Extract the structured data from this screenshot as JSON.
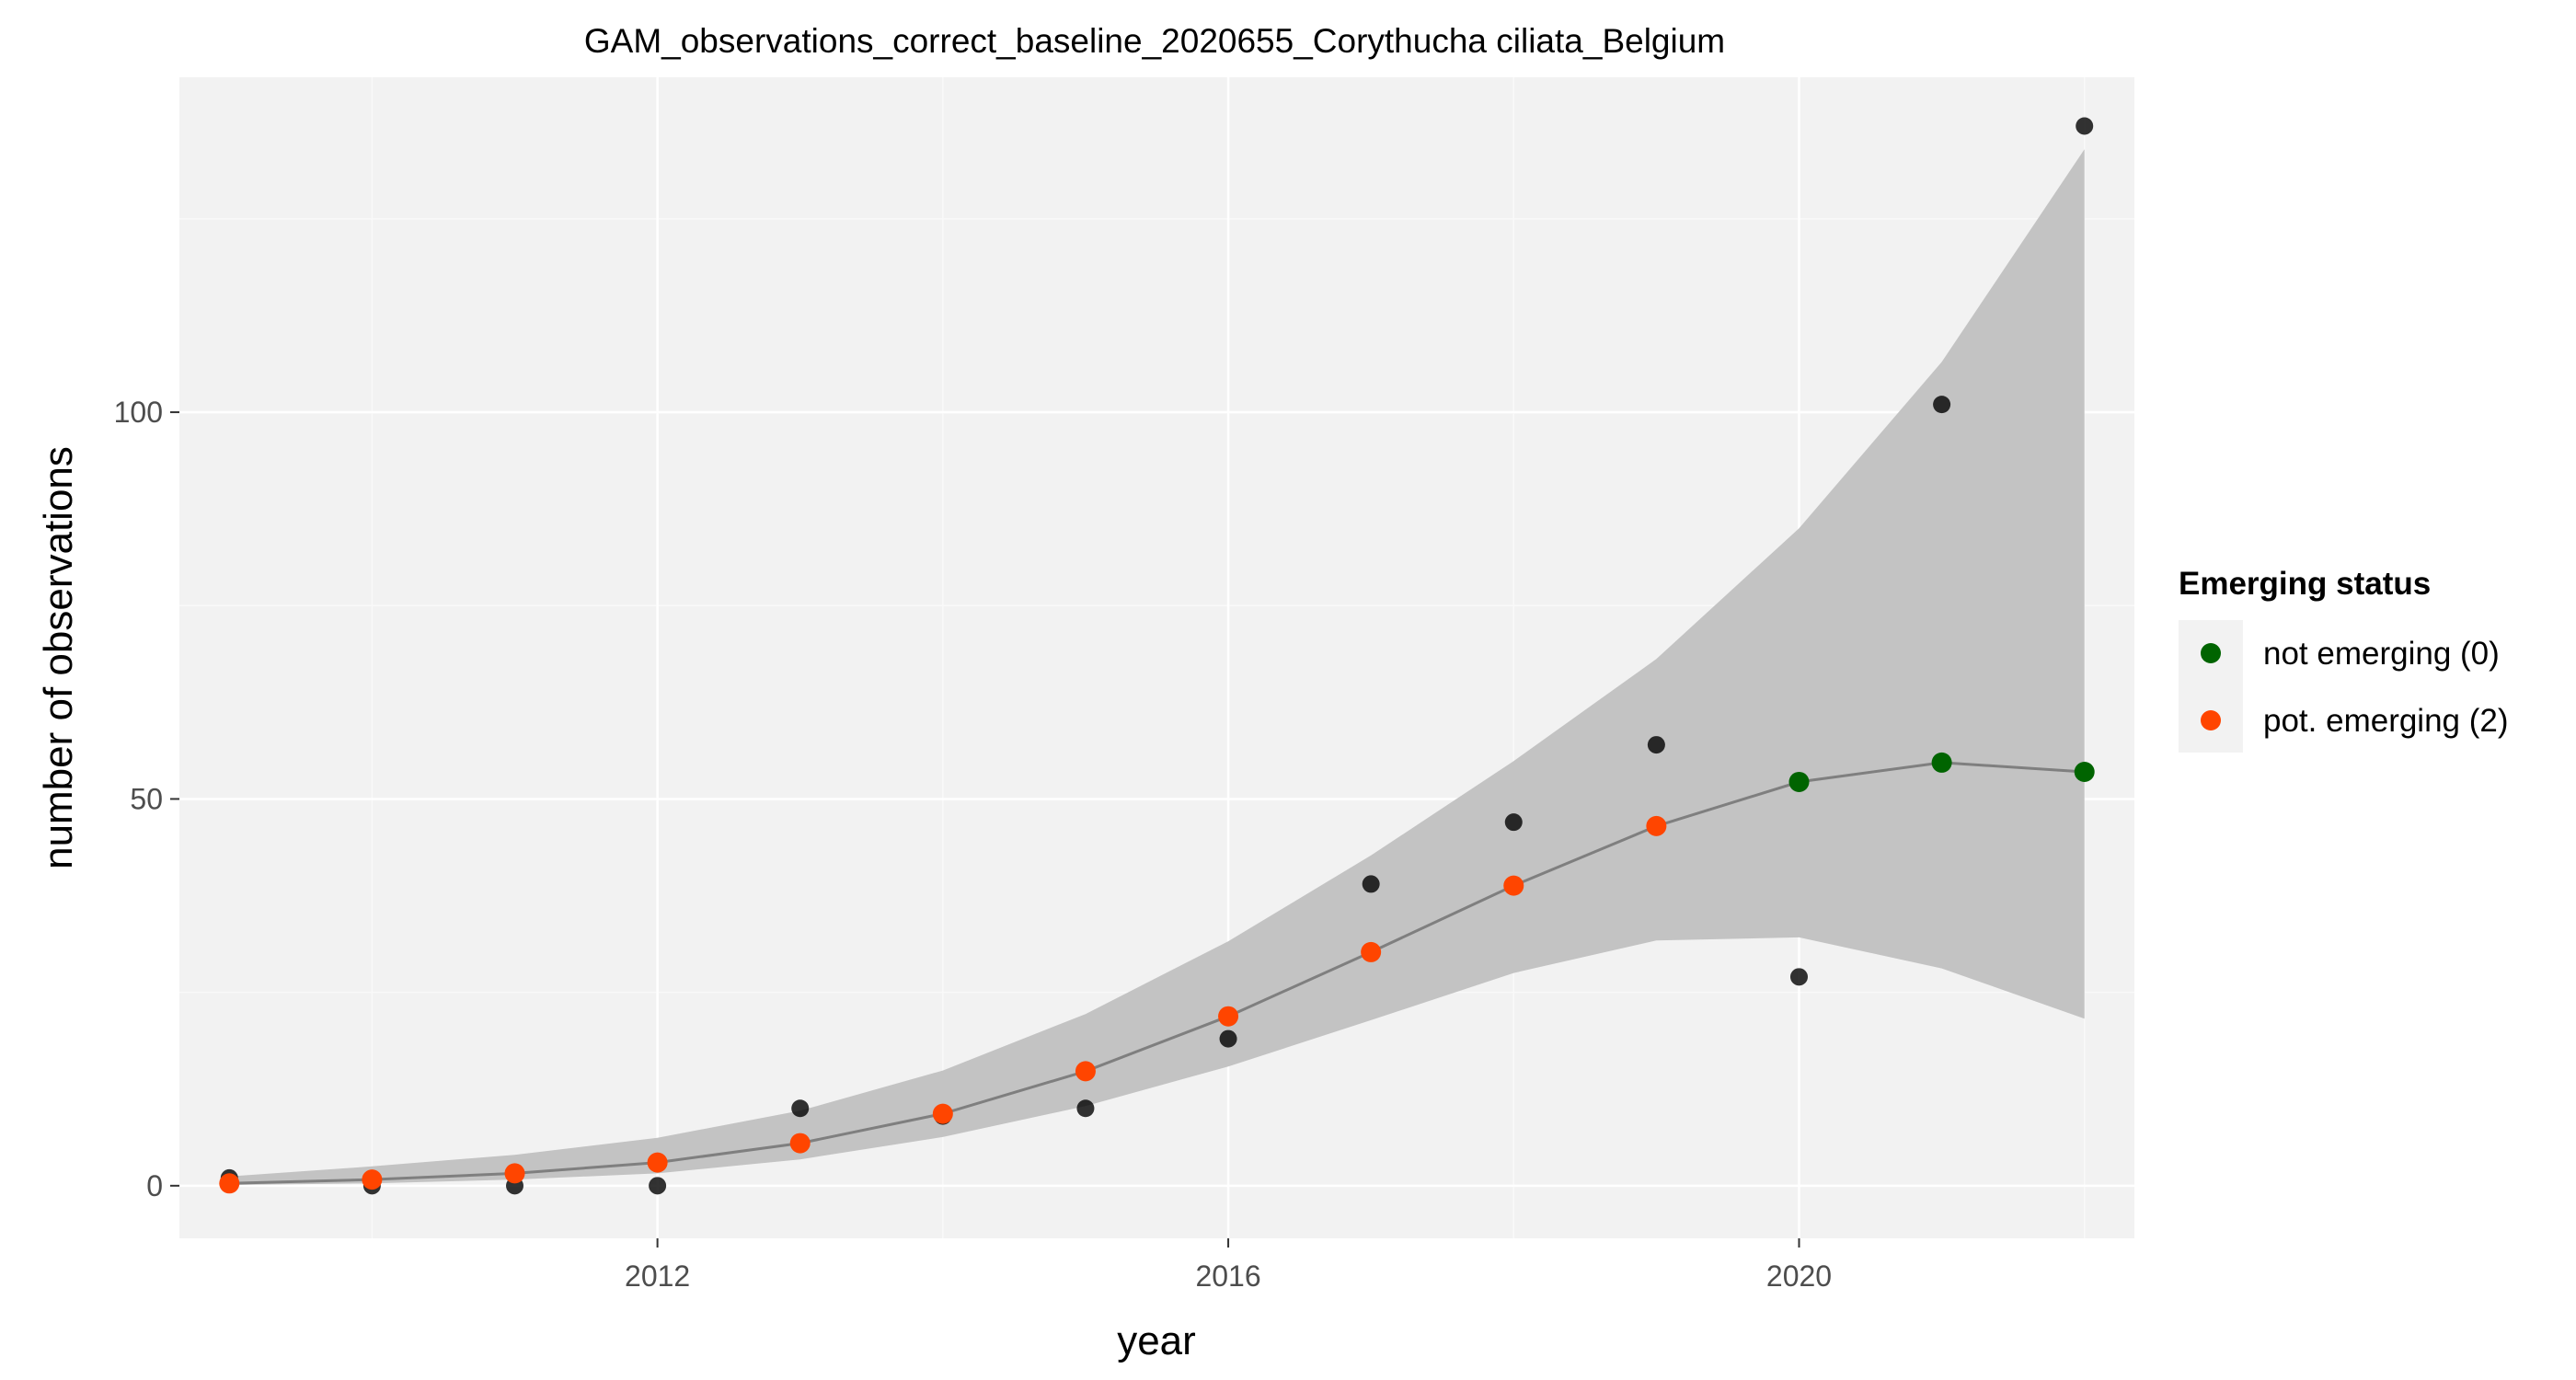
{
  "chart_data": {
    "type": "scatter",
    "title": "GAM_observations_correct_baseline_2020655_Corythucha ciliata_Belgium",
    "xlabel": "year",
    "ylabel": "number of observations",
    "xlim": [
      2008.65,
      2022.35
    ],
    "ylim": [
      -6.8,
      143.3
    ],
    "x_ticks": [
      2012,
      2016,
      2020
    ],
    "y_ticks": [
      0,
      50,
      100
    ],
    "grid": true,
    "legend": {
      "title": "Emerging status",
      "position": "right",
      "entries": [
        {
          "label": "not emerging (0)",
          "color": "#006400"
        },
        {
          "label": "pot. emerging (2)",
          "color": "#FF4500"
        }
      ]
    },
    "observed": {
      "x": [
        2009,
        2010,
        2011,
        2012,
        2013,
        2014,
        2015,
        2016,
        2017,
        2018,
        2019,
        2020,
        2021,
        2022
      ],
      "y": [
        1,
        0,
        0,
        0,
        10,
        9,
        10,
        19,
        39,
        47,
        57,
        27,
        101,
        137
      ],
      "color": "#000000"
    },
    "fit": {
      "x": [
        2009,
        2010,
        2011,
        2012,
        2013,
        2014,
        2015,
        2016,
        2017,
        2018,
        2019,
        2020,
        2021,
        2022
      ],
      "y": [
        0.3,
        0.8,
        1.6,
        3.0,
        5.5,
        9.3,
        14.8,
        21.9,
        30.2,
        38.8,
        46.5,
        52.2,
        54.7,
        53.5
      ],
      "lower": [
        0.1,
        0.3,
        0.8,
        1.6,
        3.4,
        6.3,
        10.3,
        15.4,
        21.4,
        27.5,
        31.7,
        32.1,
        28.1,
        21.6
      ],
      "upper": [
        1.2,
        2.5,
        4.0,
        6.2,
        9.7,
        14.9,
        22.2,
        31.6,
        42.7,
        54.9,
        68.1,
        85.0,
        106.5,
        134.0
      ],
      "status": [
        "pot. emerging (2)",
        "pot. emerging (2)",
        "pot. emerging (2)",
        "pot. emerging (2)",
        "pot. emerging (2)",
        "pot. emerging (2)",
        "pot. emerging (2)",
        "pot. emerging (2)",
        "pot. emerging (2)",
        "pot. emerging (2)",
        "pot. emerging (2)",
        "not emerging (0)",
        "not emerging (0)",
        "not emerging (0)"
      ],
      "line_color": "#7f7f7f",
      "ribbon_color": "#c3c3c3"
    },
    "colors": {
      "panel_background": "#f2f2f2",
      "grid_major": "#ffffff",
      "grid_minor": "#f9f9f9",
      "tick_text": "#4d4d4d"
    }
  }
}
